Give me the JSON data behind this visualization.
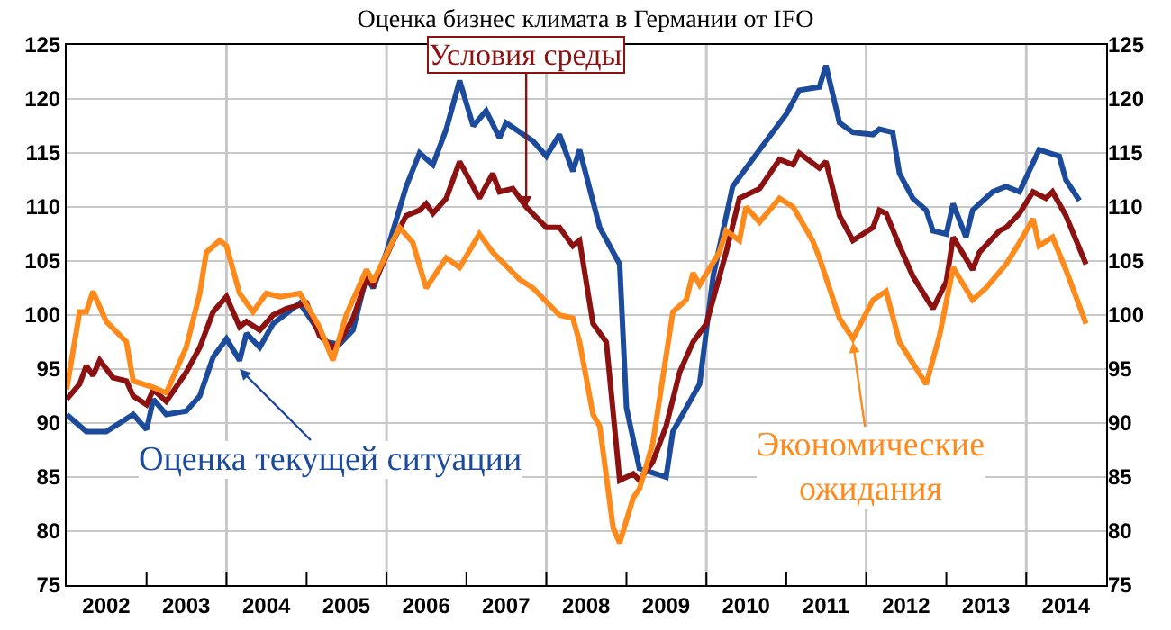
{
  "chart_data": {
    "type": "line",
    "title": "Оценка бизнес климата в Германии от IFO",
    "xlim": [
      "2002-01",
      "2015-01"
    ],
    "xticks": [
      {
        "value": "2002-07",
        "label": "2002"
      },
      {
        "value": "2003-07",
        "label": "2003"
      },
      {
        "value": "2004-07",
        "label": "2004"
      },
      {
        "value": "2005-07",
        "label": "2005"
      },
      {
        "value": "2006-07",
        "label": "2006"
      },
      {
        "value": "2007-07",
        "label": "2007"
      },
      {
        "value": "2008-07",
        "label": "2008"
      },
      {
        "value": "2009-07",
        "label": "2009"
      },
      {
        "value": "2010-07",
        "label": "2010"
      },
      {
        "value": "2011-07",
        "label": "2011"
      },
      {
        "value": "2012-07",
        "label": "2012"
      },
      {
        "value": "2013-07",
        "label": "2013"
      },
      {
        "value": "2014-07",
        "label": "2014"
      },
      {
        "value": "2003",
        "label": null
      },
      {
        "value": "2004",
        "label": null
      },
      {
        "value": "2005",
        "label": null
      },
      {
        "value": "2006",
        "label": null
      },
      {
        "value": "2007",
        "label": null
      },
      {
        "value": "2008",
        "label": null
      },
      {
        "value": "2009",
        "label": null
      },
      {
        "value": "2010",
        "label": null
      },
      {
        "value": "2011",
        "label": null
      },
      {
        "value": "2012",
        "label": null
      },
      {
        "value": "2013",
        "label": null
      },
      {
        "value": "2014",
        "label": null
      }
    ],
    "ylim": [
      75,
      125
    ],
    "yticks": [
      75,
      80,
      85,
      90,
      95,
      100,
      105,
      110,
      115,
      120,
      125
    ],
    "y2lim": [
      75,
      125
    ],
    "y2ticks": [
      75,
      80,
      85,
      90,
      95,
      100,
      105,
      110,
      115,
      120,
      125
    ],
    "grid": "y",
    "marker": "none",
    "line_style": "solid",
    "ref_lines": [
      {
        "axis": "x",
        "value": "2004-01",
        "color": "#c8c8c8"
      },
      {
        "axis": "x",
        "value": "2006-01",
        "color": "#c8c8c8"
      },
      {
        "axis": "x",
        "value": "2008-01",
        "color": "#c8c8c8"
      },
      {
        "axis": "x",
        "value": "2010-01",
        "color": "#c8c8c8"
      },
      {
        "axis": "x",
        "value": "2012-01",
        "color": "#c8c8c8"
      },
      {
        "axis": "x",
        "value": "2014-01",
        "color": "#c8c8c8"
      }
    ],
    "series": [
      {
        "color": "#1c4b9c",
        "x": [
          "2002-01",
          "2002-04",
          "2002-07",
          "2002-11",
          "2003-01",
          "2003-02",
          "2003-04",
          "2003-07",
          "2003-09",
          "2003-11",
          "2004-01",
          "2004-03",
          "2004-04",
          "2004-06",
          "2004-08",
          "2004-12",
          "2005-04",
          "2005-06",
          "2005-08",
          "2005-10",
          "2005-11",
          "2006-01",
          "2006-04",
          "2006-06",
          "2006-08",
          "2006-10",
          "2006-12",
          "2007-02",
          "2007-04",
          "2007-06",
          "2007-07",
          "2007-11",
          "2008-01",
          "2008-03",
          "2008-05",
          "2008-06",
          "2008-09",
          "2008-12",
          "2009-01",
          "2009-03",
          "2009-07",
          "2009-08",
          "2009-12",
          "2010-02",
          "2010-05",
          "2010-09",
          "2011-01",
          "2011-03",
          "2011-06",
          "2011-07",
          "2011-09",
          "2011-11",
          "2012-02",
          "2012-03",
          "2012-05",
          "2012-06",
          "2012-08",
          "2012-10",
          "2012-11",
          "2013-01",
          "2013-02",
          "2013-04",
          "2013-05",
          "2013-08",
          "2013-10",
          "2013-12",
          "2014-03",
          "2014-06",
          "2014-07",
          "2014-09"
        ],
        "values": [
          90.8,
          89.2,
          89.2,
          90.8,
          89.4,
          92.2,
          90.8,
          91.1,
          92.5,
          96.1,
          97.8,
          95.8,
          98.3,
          97,
          99.2,
          101.1,
          97.5,
          97.3,
          98.6,
          103.6,
          102.5,
          105.8,
          111.9,
          115,
          113.9,
          117.2,
          121.7,
          117.5,
          118.9,
          116.4,
          117.8,
          116.1,
          114.7,
          116.7,
          113.3,
          115.3,
          108.1,
          104.7,
          91.4,
          85.8,
          85,
          89.2,
          93.6,
          103.6,
          111.9,
          115.3,
          118.6,
          120.8,
          121.1,
          123.1,
          117.8,
          116.9,
          116.7,
          117.2,
          116.9,
          113.1,
          110.8,
          109.7,
          107.8,
          107.5,
          110.3,
          107.2,
          109.7,
          111.4,
          111.9,
          111.4,
          115.3,
          114.7,
          112.5,
          110.6
        ]
      },
      {
        "color": "#8c1212",
        "x": [
          "2002-01",
          "2002-03",
          "2002-04",
          "2002-05",
          "2002-06",
          "2002-08",
          "2002-10",
          "2002-11",
          "2003-01",
          "2003-02",
          "2003-04",
          "2003-07",
          "2003-09",
          "2003-11",
          "2004-01",
          "2004-03",
          "2004-04",
          "2004-06",
          "2004-08",
          "2004-10",
          "2005-01",
          "2005-03",
          "2005-05",
          "2005-06",
          "2005-08",
          "2005-10",
          "2005-11",
          "2006-02",
          "2006-04",
          "2006-06",
          "2006-07",
          "2006-08",
          "2006-10",
          "2006-12",
          "2007-03",
          "2007-05",
          "2007-06",
          "2007-08",
          "2007-10",
          "2008-01",
          "2008-03",
          "2008-05",
          "2008-06",
          "2008-08",
          "2008-10",
          "2008-12",
          "2009-02",
          "2009-03",
          "2009-05",
          "2009-07",
          "2009-09",
          "2009-11",
          "2010-01",
          "2010-04",
          "2010-06",
          "2010-09",
          "2010-12",
          "2011-02",
          "2011-03",
          "2011-06",
          "2011-07",
          "2011-09",
          "2011-11",
          "2012-02",
          "2012-03",
          "2012-04",
          "2012-06",
          "2012-08",
          "2012-11",
          "2013-01",
          "2013-02",
          "2013-05",
          "2013-06",
          "2013-09",
          "2013-10",
          "2013-12",
          "2014-02",
          "2014-04",
          "2014-05",
          "2014-07",
          "2014-10"
        ],
        "values": [
          92.2,
          93.6,
          95.3,
          94.4,
          95.8,
          94.2,
          93.9,
          92.5,
          91.7,
          93.1,
          92,
          94.7,
          97,
          100.3,
          101.7,
          98.9,
          99.4,
          98.6,
          100,
          100.6,
          101.1,
          98.1,
          97,
          97.5,
          99.7,
          103.3,
          102.8,
          106.9,
          109.2,
          109.7,
          110.3,
          109.4,
          110.8,
          114.2,
          110.8,
          113.1,
          111.4,
          111.7,
          110,
          108.1,
          108.1,
          106.4,
          106.9,
          99.2,
          97.5,
          84.7,
          85.3,
          84.7,
          86.4,
          89.7,
          94.7,
          97.5,
          99.2,
          105.8,
          110.8,
          111.7,
          114.4,
          113.9,
          115,
          113.6,
          114.2,
          109.2,
          106.9,
          108.1,
          109.7,
          109.4,
          106.4,
          103.6,
          100.6,
          103.1,
          107.2,
          104.2,
          105.8,
          107.8,
          108.1,
          109.4,
          111.4,
          110.8,
          111.4,
          109.2,
          104.7
        ]
      },
      {
        "color": "#ff8a1c",
        "x": [
          "2002-01",
          "2002-03",
          "2002-04",
          "2002-05",
          "2002-07",
          "2002-10",
          "2002-11",
          "2003-02",
          "2003-04",
          "2003-07",
          "2003-09",
          "2003-10",
          "2003-12",
          "2004-01",
          "2004-03",
          "2004-05",
          "2004-07",
          "2004-09",
          "2004-12",
          "2005-03",
          "2005-05",
          "2005-07",
          "2005-10",
          "2005-11",
          "2006-03",
          "2006-05",
          "2006-07",
          "2006-10",
          "2006-12",
          "2007-03",
          "2007-05",
          "2007-09",
          "2007-11",
          "2008-03",
          "2008-05",
          "2008-06",
          "2008-08",
          "2008-09",
          "2008-11",
          "2008-12",
          "2009-02",
          "2009-03",
          "2009-05",
          "2009-08",
          "2009-10",
          "2009-11",
          "2009-12",
          "2010-03",
          "2010-04",
          "2010-06",
          "2010-07",
          "2010-09",
          "2010-12",
          "2011-02",
          "2011-05",
          "2011-06",
          "2011-09",
          "2011-11",
          "2012-02",
          "2012-04",
          "2012-06",
          "2012-10",
          "2012-12",
          "2013-02",
          "2013-05",
          "2013-07",
          "2013-10",
          "2013-12",
          "2014-02",
          "2014-03",
          "2014-05",
          "2014-07",
          "2014-10"
        ],
        "values": [
          93.1,
          100.3,
          100.3,
          102.2,
          99.4,
          97.5,
          93.9,
          93.3,
          92.8,
          97,
          102,
          105.8,
          106.9,
          106.4,
          102,
          100.3,
          102,
          101.7,
          102,
          98.9,
          95.8,
          100,
          104.2,
          103.1,
          108.1,
          106.7,
          102.5,
          105.3,
          104.4,
          107.5,
          105.8,
          103.3,
          102.5,
          100,
          99.7,
          97.5,
          90.8,
          89.7,
          80.3,
          78.9,
          83.1,
          83.9,
          88.1,
          100.3,
          101.4,
          103.9,
          102.8,
          105.8,
          107.8,
          106.9,
          110,
          108.6,
          110.8,
          110,
          106.9,
          105.3,
          99.7,
          97.8,
          101.4,
          102.2,
          97.5,
          93.6,
          98.1,
          104.4,
          101.4,
          102.5,
          104.7,
          106.7,
          108.9,
          106.4,
          107.2,
          104.2,
          99.2
        ]
      }
    ],
    "annotations": [
      {
        "text": "Условия среды",
        "x": "2007-10",
        "y": 110
      },
      {
        "text": "Оценка текущей ситуации",
        "x": "2004-03",
        "y": 95
      },
      {
        "text": "Экономические\nожидания",
        "x": "2011-11",
        "y": 97.5
      }
    ]
  }
}
